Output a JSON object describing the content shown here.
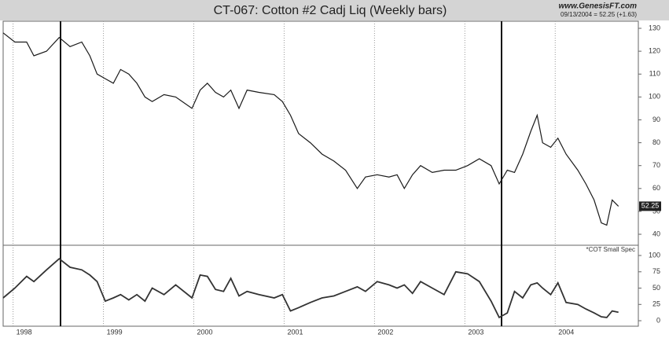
{
  "title": "CT-067:  Cotton #2 Cadj Liq  (Weekly bars)",
  "source": "www.GenesisFT.com",
  "last_quote": "09/13/2004 = 52.25 (+1.63)",
  "chart_data": [
    {
      "type": "line",
      "color": "#1a1a1a",
      "x": [
        1997.89,
        1998.02,
        1998.15,
        1998.23,
        1998.37,
        1998.51,
        1998.63,
        1998.76,
        1998.85,
        1998.93,
        1999.02,
        1999.11,
        1999.19,
        1999.28,
        1999.37,
        1999.46,
        1999.54,
        1999.67,
        1999.8,
        1999.98,
        2000.07,
        2000.15,
        2000.24,
        2000.33,
        2000.41,
        2000.5,
        2000.59,
        2000.72,
        2000.89,
        2000.98,
        2001.07,
        2001.16,
        2001.29,
        2001.42,
        2001.55,
        2001.68,
        2001.81,
        2001.9,
        2002.03,
        2002.16,
        2002.25,
        2002.33,
        2002.42,
        2002.51,
        2002.64,
        2002.77,
        2002.9,
        2003.03,
        2003.16,
        2003.29,
        2003.38,
        2003.47,
        2003.55,
        2003.64,
        2003.73,
        2003.8,
        2003.86,
        2003.95,
        2004.03,
        2004.12,
        2004.25,
        2004.34,
        2004.43,
        2004.51,
        2004.57,
        2004.63,
        2004.7
      ],
      "values": [
        128,
        124,
        124,
        118,
        120,
        126,
        122,
        124,
        118,
        110,
        108,
        106,
        112,
        110,
        106,
        100,
        98,
        101,
        100,
        95,
        103,
        106,
        102,
        100,
        103,
        95,
        103,
        102,
        101,
        98,
        92,
        84,
        80,
        75,
        72,
        68,
        60,
        65,
        66,
        65,
        66,
        60,
        66,
        70,
        67,
        68,
        68,
        70,
        73,
        70,
        62,
        68,
        67,
        75,
        85,
        92,
        80,
        78,
        82,
        75,
        68,
        62,
        55,
        45,
        44,
        55,
        52.25
      ],
      "xlim": [
        1997.89,
        2004.92
      ],
      "ylim": [
        35.2,
        133.1
      ],
      "yticks": [
        40,
        50,
        60,
        70,
        80,
        90,
        100,
        110,
        120,
        130
      ],
      "grid": true
    },
    {
      "type": "line",
      "color": "#333333",
      "label": "*COT Small Spec",
      "x": [
        1997.89,
        1998.02,
        1998.15,
        1998.23,
        1998.37,
        1998.51,
        1998.63,
        1998.76,
        1998.85,
        1998.93,
        1999.02,
        1999.11,
        1999.19,
        1999.28,
        1999.37,
        1999.46,
        1999.54,
        1999.67,
        1999.8,
        1999.98,
        2000.07,
        2000.15,
        2000.24,
        2000.33,
        2000.41,
        2000.5,
        2000.59,
        2000.72,
        2000.89,
        2000.98,
        2001.07,
        2001.16,
        2001.29,
        2001.42,
        2001.55,
        2001.68,
        2001.81,
        2001.9,
        2002.03,
        2002.16,
        2002.25,
        2002.33,
        2002.42,
        2002.51,
        2002.64,
        2002.77,
        2002.9,
        2003.03,
        2003.16,
        2003.29,
        2003.38,
        2003.47,
        2003.55,
        2003.64,
        2003.73,
        2003.8,
        2003.86,
        2003.95,
        2004.03,
        2004.12,
        2004.25,
        2004.34,
        2004.43,
        2004.51,
        2004.57,
        2004.63,
        2004.7
      ],
      "values": [
        35,
        50,
        68,
        60,
        78,
        95,
        82,
        78,
        70,
        60,
        30,
        35,
        40,
        32,
        40,
        30,
        50,
        40,
        55,
        35,
        70,
        68,
        48,
        45,
        65,
        38,
        45,
        40,
        35,
        40,
        15,
        20,
        28,
        35,
        38,
        45,
        52,
        45,
        60,
        55,
        50,
        55,
        42,
        60,
        50,
        40,
        75,
        72,
        60,
        30,
        5,
        12,
        45,
        35,
        55,
        58,
        50,
        40,
        58,
        28,
        25,
        18,
        12,
        6,
        5,
        15,
        13
      ],
      "xlim": [
        1997.89,
        2004.92
      ],
      "ylim": [
        -8.4,
        115.7
      ],
      "yticks": [
        0,
        25,
        50,
        75,
        100
      ],
      "xticks": [
        1998,
        1999,
        2000,
        2001,
        2002,
        2003,
        2004
      ],
      "grid": true
    }
  ]
}
